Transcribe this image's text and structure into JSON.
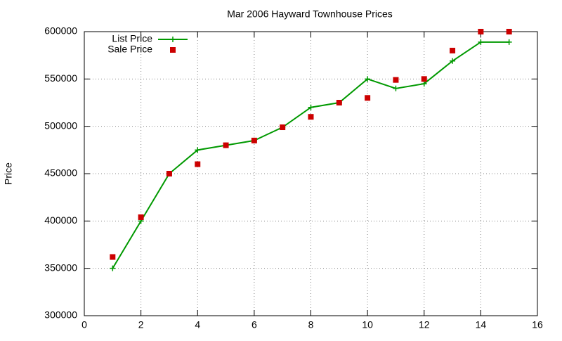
{
  "chart_data": {
    "type": "line",
    "title": "Mar 2006 Hayward Townhouse Prices",
    "y_label": "Price",
    "x": [
      1,
      2,
      3,
      4,
      5,
      6,
      7,
      8,
      9,
      10,
      11,
      12,
      13,
      14,
      15
    ],
    "series": [
      {
        "name": "List Price",
        "color": "#009900",
        "style": "linespoints",
        "values": [
          350000,
          400000,
          450000,
          475000,
          480000,
          485000,
          499000,
          520000,
          525000,
          550000,
          540000,
          545000,
          569000,
          589000,
          589000
        ]
      },
      {
        "name": "Sale Price",
        "color": "#cc0000",
        "style": "points",
        "values": [
          362000,
          404000,
          450000,
          460000,
          480000,
          485000,
          499000,
          510000,
          525000,
          530000,
          549000,
          550000,
          580000,
          600000,
          600000
        ]
      }
    ],
    "xlim": [
      0,
      16
    ],
    "xticks": [
      0,
      2,
      4,
      6,
      8,
      10,
      12,
      14,
      16
    ],
    "ylim": [
      300000,
      600000
    ],
    "yticks": [
      300000,
      350000,
      400000,
      450000,
      500000,
      550000,
      600000
    ],
    "grid": true,
    "legend_position": "top-left"
  }
}
